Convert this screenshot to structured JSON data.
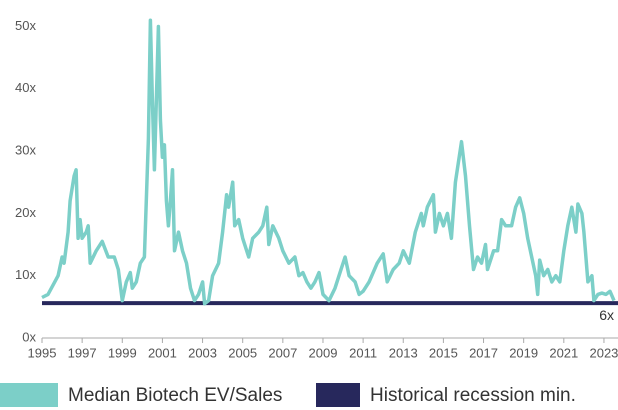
{
  "chart_data": {
    "type": "line",
    "x": [
      1995.0,
      1995.3,
      1995.8,
      1996.0,
      1996.1,
      1996.3,
      1996.4,
      1996.6,
      1996.7,
      1996.8,
      1996.9,
      1997.0,
      1997.2,
      1997.3,
      1997.4,
      1997.7,
      1998.0,
      1998.3,
      1998.6,
      1998.8,
      1999.0,
      1999.2,
      1999.4,
      1999.5,
      1999.7,
      1999.9,
      2000.1,
      2000.3,
      2000.4,
      2000.5,
      2000.6,
      2000.8,
      2000.9,
      2001.0,
      2001.1,
      2001.2,
      2001.3,
      2001.4,
      2001.5,
      2001.6,
      2001.8,
      2002.0,
      2002.2,
      2002.4,
      2002.6,
      2002.8,
      2003.0,
      2003.1,
      2003.3,
      2003.5,
      2003.8,
      2004.0,
      2004.2,
      2004.3,
      2004.5,
      2004.6,
      2004.8,
      2005.0,
      2005.3,
      2005.5,
      2005.8,
      2006.0,
      2006.2,
      2006.3,
      2006.5,
      2006.8,
      2007.0,
      2007.3,
      2007.6,
      2007.8,
      2008.0,
      2008.2,
      2008.4,
      2008.6,
      2008.8,
      2009.0,
      2009.3,
      2009.6,
      2009.9,
      2010.1,
      2010.3,
      2010.6,
      2010.8,
      2011.0,
      2011.3,
      2011.7,
      2012.0,
      2012.2,
      2012.5,
      2012.8,
      2013.0,
      2013.3,
      2013.6,
      2013.9,
      2014.0,
      2014.2,
      2014.5,
      2014.6,
      2014.8,
      2015.0,
      2015.2,
      2015.4,
      2015.6,
      2015.9,
      2016.1,
      2016.3,
      2016.5,
      2016.7,
      2016.9,
      2017.1,
      2017.2,
      2017.5,
      2017.7,
      2017.9,
      2018.1,
      2018.4,
      2018.6,
      2018.8,
      2019.0,
      2019.2,
      2019.4,
      2019.6,
      2019.7,
      2019.8,
      2020.0,
      2020.2,
      2020.4,
      2020.6,
      2020.8,
      2021.0,
      2021.2,
      2021.4,
      2021.6,
      2021.7,
      2021.9,
      2022.0,
      2022.2,
      2022.4,
      2022.5,
      2022.7,
      2022.9,
      2023.1,
      2023.3,
      2023.5
    ],
    "series": [
      {
        "name": "Median Biotech EV/Sales",
        "color": "#7ccfc8",
        "values": [
          6.5,
          7,
          10,
          13,
          12,
          17,
          22,
          26,
          27,
          16,
          19,
          16,
          17,
          18,
          12,
          14,
          15.5,
          13,
          13,
          11,
          6,
          9,
          10.5,
          8,
          9,
          12,
          13,
          32,
          51,
          38,
          27,
          50,
          35,
          29,
          31,
          22,
          18,
          22,
          27,
          14,
          17,
          14,
          12,
          8,
          6,
          7,
          9,
          5.5,
          6,
          10,
          12,
          17,
          23,
          21,
          25,
          18,
          19,
          16,
          13,
          16,
          17,
          18,
          21,
          15,
          18,
          16,
          14,
          12,
          13,
          10,
          10.5,
          9,
          8,
          9,
          10.5,
          7,
          6,
          8,
          11,
          13,
          10,
          9,
          7,
          7.5,
          9,
          12,
          13.5,
          9,
          11,
          12,
          14,
          12,
          17,
          20,
          18,
          21,
          23,
          17,
          20,
          18,
          20,
          16,
          25,
          31.5,
          26,
          18,
          11,
          13,
          12,
          15,
          11,
          14,
          14,
          19,
          18,
          18,
          21,
          22.5,
          20,
          16,
          13,
          10,
          7,
          12.5,
          10,
          11,
          9,
          10,
          9,
          14,
          18,
          21,
          17,
          21.5,
          20,
          17,
          9,
          10,
          6,
          7,
          7.2,
          7,
          7.5,
          6
        ]
      }
    ],
    "reference_line": {
      "name": "Historical recession min.",
      "color": "#27285c",
      "value": 5.6,
      "label": "6x"
    },
    "xlim": [
      1995,
      2023.7
    ],
    "xticks": [
      1995,
      1997,
      1999,
      2001,
      2003,
      2005,
      2007,
      2009,
      2011,
      2013,
      2015,
      2017,
      2019,
      2021,
      2023
    ],
    "ylim": [
      0,
      52
    ],
    "yticks": [
      {
        "value": 0,
        "label": "0x"
      },
      {
        "value": 10,
        "label": "10x"
      },
      {
        "value": 20,
        "label": "20x"
      },
      {
        "value": 30,
        "label": "30x"
      },
      {
        "value": 40,
        "label": "40x"
      },
      {
        "value": 50,
        "label": "50x"
      }
    ]
  }
}
